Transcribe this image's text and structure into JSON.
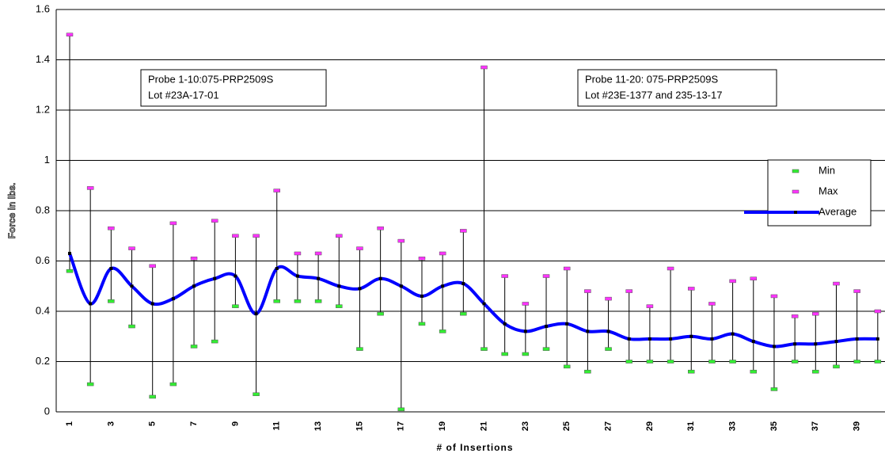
{
  "chart_data": {
    "type": "line",
    "y_label": "Force in lbs.",
    "x_label": "# of Insertions",
    "categories": [
      "1",
      null,
      "3",
      null,
      "5",
      null,
      "7",
      null,
      "9",
      null,
      "11",
      null,
      "13",
      null,
      "15",
      null,
      "17",
      null,
      "19",
      null,
      "21",
      null,
      "23",
      null,
      "25",
      null,
      "27",
      null,
      "29",
      null,
      "31",
      null,
      "33",
      null,
      "35",
      null,
      "37",
      null,
      "39",
      null
    ],
    "series": [
      {
        "name": "Min",
        "color": "#33ee33",
        "values": [
          0.56,
          0.11,
          0.44,
          0.34,
          0.06,
          0.11,
          0.26,
          0.28,
          0.42,
          0.07,
          0.44,
          0.44,
          0.44,
          0.42,
          0.25,
          0.39,
          0.01,
          0.35,
          0.32,
          0.39,
          0.25,
          0.23,
          0.23,
          0.25,
          0.18,
          0.16,
          0.25,
          0.2,
          0.2,
          0.2,
          0.16,
          0.2,
          0.2,
          0.16,
          0.09,
          0.2,
          0.16,
          0.18,
          0.2,
          0.2
        ]
      },
      {
        "name": "Max",
        "color": "#ff33ff",
        "values": [
          1.5,
          0.89,
          0.73,
          0.65,
          0.58,
          0.75,
          0.61,
          0.76,
          0.7,
          0.7,
          0.88,
          0.63,
          0.63,
          0.7,
          0.65,
          0.73,
          0.68,
          0.61,
          0.63,
          0.72,
          1.37,
          0.54,
          0.43,
          0.54,
          0.57,
          0.48,
          0.45,
          0.48,
          0.42,
          0.57,
          0.49,
          0.43,
          0.52,
          0.53,
          0.46,
          0.38,
          0.39,
          0.51,
          0.48,
          0.4
        ]
      },
      {
        "name": "Average",
        "color": "#0000ff",
        "values": [
          0.63,
          0.43,
          0.57,
          0.5,
          0.43,
          0.45,
          0.5,
          0.53,
          0.54,
          0.39,
          0.57,
          0.54,
          0.53,
          0.5,
          0.49,
          0.53,
          0.5,
          0.46,
          0.5,
          0.51,
          0.43,
          0.35,
          0.32,
          0.34,
          0.35,
          0.32,
          0.32,
          0.29,
          0.29,
          0.29,
          0.3,
          0.29,
          0.31,
          0.28,
          0.26,
          0.27,
          0.27,
          0.28,
          0.29,
          0.29
        ]
      }
    ],
    "ylim": [
      0,
      1.6
    ],
    "yticks": [
      0,
      0.2,
      0.4,
      0.6,
      0.8,
      1,
      1.2,
      1.4,
      1.6
    ],
    "grid": true,
    "legend": "right",
    "annotations": [
      {
        "lines": [
          "Probe 1-10:075-PRP2509S",
          "Lot #23A-17-01"
        ]
      },
      {
        "lines": [
          "Probe 11-20: 075-PRP2509S",
          "Lot #23E-1377 and 235-13-17"
        ]
      }
    ]
  }
}
